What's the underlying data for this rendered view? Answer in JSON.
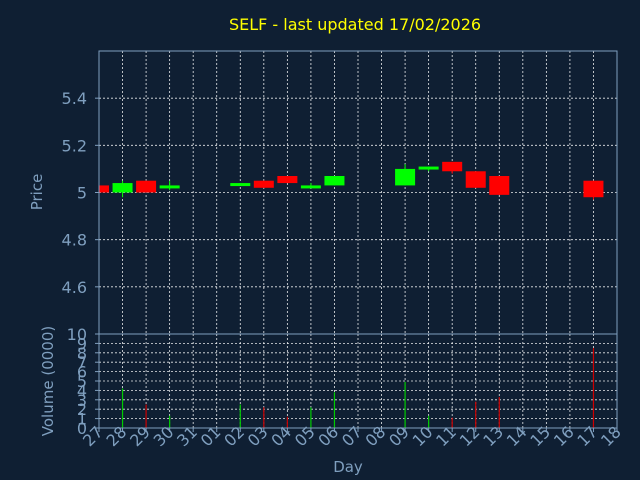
{
  "title": "SELF - last updated 17/02/2026",
  "colors": {
    "background": "#0f1f33",
    "title": "#ffff00",
    "axis_text": "#7f9fbf",
    "up": "#00ff00",
    "down": "#ff0000",
    "volume_up": "#00cc00",
    "volume_down": "#cc0000",
    "grid": "#ffffff"
  },
  "chart_data": [
    {
      "type": "candlestick",
      "ylabel": "Price",
      "ylim": [
        4.4,
        5.6
      ],
      "yticks": [
        "5.4",
        "5.2",
        "5",
        "4.8",
        "4.6"
      ],
      "grid": true,
      "candles": [
        {
          "day": "27",
          "open": 5.03,
          "high": 5.03,
          "low": 5.0,
          "close": 5.0
        },
        {
          "day": "28",
          "open": 5.0,
          "high": 5.05,
          "low": 4.98,
          "close": 5.04
        },
        {
          "day": "29",
          "open": 5.05,
          "high": 5.05,
          "low": 5.0,
          "close": 5.0
        },
        {
          "day": "30",
          "open": 5.02,
          "high": 5.05,
          "low": 5.01,
          "close": 5.03
        },
        {
          "day": "02",
          "open": 5.03,
          "high": 5.04,
          "low": 5.03,
          "close": 5.04
        },
        {
          "day": "03",
          "open": 5.05,
          "high": 5.05,
          "low": 5.02,
          "close": 5.02
        },
        {
          "day": "04",
          "open": 5.07,
          "high": 5.07,
          "low": 5.04,
          "close": 5.04
        },
        {
          "day": "05",
          "open": 5.02,
          "high": 5.04,
          "low": 5.02,
          "close": 5.03
        },
        {
          "day": "06",
          "open": 5.03,
          "high": 5.07,
          "low": 5.03,
          "close": 5.07
        },
        {
          "day": "09",
          "open": 5.03,
          "high": 5.12,
          "low": 5.03,
          "close": 5.1
        },
        {
          "day": "10",
          "open": 5.1,
          "high": 5.11,
          "low": 5.09,
          "close": 5.11
        },
        {
          "day": "11",
          "open": 5.13,
          "high": 5.13,
          "low": 5.08,
          "close": 5.09
        },
        {
          "day": "12",
          "open": 5.09,
          "high": 5.09,
          "low": 5.02,
          "close": 5.02
        },
        {
          "day": "13",
          "open": 5.07,
          "high": 5.07,
          "low": 4.99,
          "close": 4.99
        },
        {
          "day": "17",
          "open": 5.05,
          "high": 5.05,
          "low": 4.97,
          "close": 4.98
        }
      ]
    },
    {
      "type": "bar",
      "ylabel": "Volume (0000)",
      "xlabel": "Day",
      "ylim": [
        0,
        10
      ],
      "yticks": [
        "10",
        "9",
        "8",
        "7",
        "6",
        "5",
        "4",
        "3",
        "2",
        "1",
        "0"
      ],
      "categories": [
        "27",
        "28",
        "29",
        "30",
        "31",
        "01",
        "02",
        "03",
        "04",
        "05",
        "06",
        "07",
        "08",
        "09",
        "10",
        "11",
        "12",
        "13",
        "14",
        "15",
        "16",
        "17",
        "18"
      ],
      "volumes": [
        {
          "day": "28",
          "value": 4.2,
          "direction": "up"
        },
        {
          "day": "29",
          "value": 2.5,
          "direction": "down"
        },
        {
          "day": "30",
          "value": 1.3,
          "direction": "up"
        },
        {
          "day": "02",
          "value": 2.5,
          "direction": "up"
        },
        {
          "day": "03",
          "value": 2.2,
          "direction": "down"
        },
        {
          "day": "04",
          "value": 1.2,
          "direction": "down"
        },
        {
          "day": "05",
          "value": 2.2,
          "direction": "up"
        },
        {
          "day": "06",
          "value": 3.8,
          "direction": "up"
        },
        {
          "day": "09",
          "value": 4.9,
          "direction": "up"
        },
        {
          "day": "10",
          "value": 1.3,
          "direction": "up"
        },
        {
          "day": "11",
          "value": 1.1,
          "direction": "down"
        },
        {
          "day": "12",
          "value": 2.8,
          "direction": "down"
        },
        {
          "day": "13",
          "value": 3.3,
          "direction": "down"
        },
        {
          "day": "17",
          "value": 8.5,
          "direction": "down"
        }
      ]
    }
  ]
}
